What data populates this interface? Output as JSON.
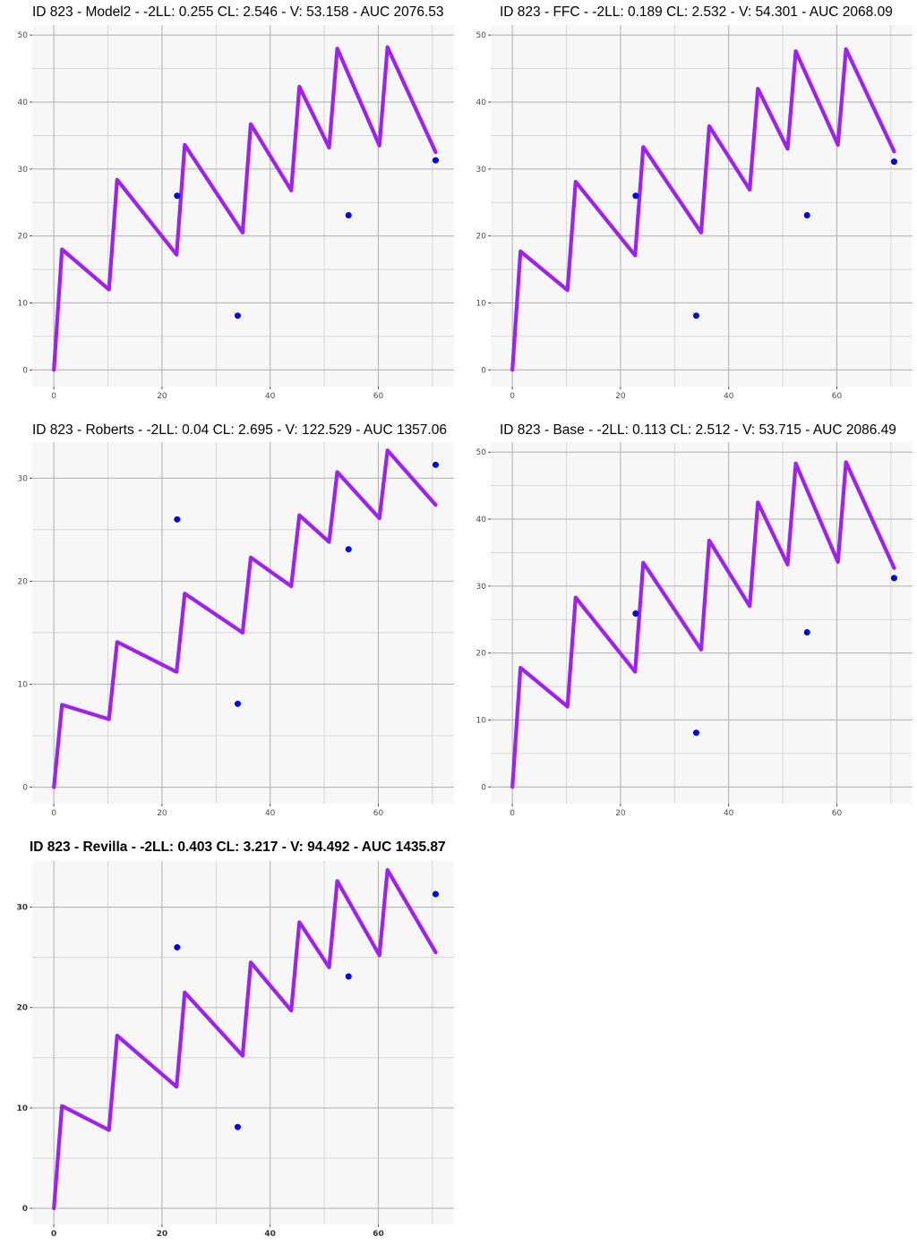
{
  "chart_data": [
    {
      "type": "line",
      "title": "ID 823 - Model2 - -2LL: 0.255 CL: 2.546 - V: 53.158 - AUC 2076.53",
      "title_bold": false,
      "xlim": [
        -4,
        74
      ],
      "ylim": [
        -2.5,
        51.5
      ],
      "x_ticks": [
        0,
        20,
        40,
        60
      ],
      "y_ticks": [
        0,
        10,
        20,
        30,
        40,
        50
      ],
      "line_color": "#a020f0",
      "point_color": "#0000ff",
      "series": [
        {
          "kind": "line",
          "x": [
            0,
            1.5,
            10.2,
            11.7,
            22.7,
            24.2,
            34.9,
            36.4,
            43.9,
            45.4,
            50.9,
            52.4,
            60.2,
            61.7,
            70.6
          ],
          "y": [
            0,
            18.0,
            12.0,
            28.4,
            17.2,
            33.6,
            20.5,
            36.7,
            26.8,
            42.3,
            33.2,
            48.0,
            33.5,
            48.2,
            32.5
          ]
        },
        {
          "kind": "points",
          "x": [
            22.8,
            34.0,
            54.5,
            70.6
          ],
          "y": [
            26.0,
            8.1,
            23.1,
            31.3
          ]
        }
      ]
    },
    {
      "type": "line",
      "title": "ID 823 - FFC - -2LL: 0.189 CL: 2.532 - V: 54.301 - AUC 2068.09",
      "title_bold": false,
      "xlim": [
        -4,
        74
      ],
      "ylim": [
        -2.5,
        51.5
      ],
      "x_ticks": [
        0,
        20,
        40,
        60
      ],
      "y_ticks": [
        0,
        10,
        20,
        30,
        40,
        50
      ],
      "line_color": "#a020f0",
      "point_color": "#0000ff",
      "series": [
        {
          "kind": "line",
          "x": [
            0,
            1.5,
            10.2,
            11.7,
            22.7,
            24.2,
            34.9,
            36.4,
            43.9,
            45.4,
            50.9,
            52.4,
            60.2,
            61.7,
            70.6
          ],
          "y": [
            0,
            17.7,
            11.9,
            28.1,
            17.1,
            33.3,
            20.5,
            36.4,
            26.9,
            42.0,
            33.0,
            47.6,
            33.6,
            47.9,
            32.6
          ]
        },
        {
          "kind": "points",
          "x": [
            22.8,
            34.0,
            54.5,
            70.6
          ],
          "y": [
            26.0,
            8.1,
            23.1,
            31.1
          ]
        }
      ]
    },
    {
      "type": "line",
      "title": "ID 823 - Roberts - -2LL: 0.04 CL: 2.695 - V: 122.529 - AUC 1357.06",
      "title_bold": false,
      "xlim": [
        -4,
        74
      ],
      "ylim": [
        -1.6,
        33.5
      ],
      "x_ticks": [
        0,
        20,
        40,
        60
      ],
      "y_ticks": [
        0,
        10,
        20,
        30
      ],
      "line_color": "#a020f0",
      "point_color": "#0000ff",
      "series": [
        {
          "kind": "line",
          "x": [
            0,
            1.5,
            10.2,
            11.7,
            22.7,
            24.2,
            34.9,
            36.4,
            43.9,
            45.4,
            50.9,
            52.4,
            60.2,
            61.7,
            70.6
          ],
          "y": [
            0,
            8.0,
            6.6,
            14.1,
            11.2,
            18.8,
            15.0,
            22.3,
            19.5,
            26.4,
            23.8,
            30.6,
            26.1,
            32.7,
            27.4
          ]
        },
        {
          "kind": "points",
          "x": [
            22.8,
            34.0,
            54.5,
            70.6
          ],
          "y": [
            26.0,
            8.1,
            23.1,
            31.3
          ]
        }
      ]
    },
    {
      "type": "line",
      "title": "ID 823 - Base - -2LL: 0.113 CL: 2.512 - V: 53.715 - AUC 2086.49",
      "title_bold": false,
      "xlim": [
        -4,
        74
      ],
      "ylim": [
        -2.5,
        51.5
      ],
      "x_ticks": [
        0,
        20,
        40,
        60
      ],
      "y_ticks": [
        0,
        10,
        20,
        30,
        40,
        50
      ],
      "line_color": "#a020f0",
      "point_color": "#0000ff",
      "series": [
        {
          "kind": "line",
          "x": [
            0,
            1.5,
            10.2,
            11.7,
            22.7,
            24.2,
            34.9,
            36.4,
            43.9,
            45.4,
            50.9,
            52.4,
            60.2,
            61.7,
            70.6
          ],
          "y": [
            0,
            17.8,
            12.0,
            28.3,
            17.2,
            33.5,
            20.5,
            36.8,
            27.0,
            42.5,
            33.2,
            48.3,
            33.6,
            48.5,
            32.7
          ]
        },
        {
          "kind": "points",
          "x": [
            22.8,
            34.0,
            54.5,
            70.6
          ],
          "y": [
            25.9,
            8.1,
            23.1,
            31.2
          ]
        }
      ]
    },
    {
      "type": "line",
      "title": "ID 823 - Revilla - -2LL: 0.403 CL: 3.217 - V: 94.492 - AUC 1435.87",
      "title_bold": true,
      "xlim": [
        -4,
        74
      ],
      "ylim": [
        -1.6,
        34.6
      ],
      "x_ticks": [
        0,
        20,
        40,
        60
      ],
      "y_ticks": [
        0,
        10,
        20,
        30
      ],
      "line_color": "#a020f0",
      "point_color": "#0000ff",
      "series": [
        {
          "kind": "line",
          "x": [
            0,
            1.5,
            10.2,
            11.7,
            22.7,
            24.2,
            34.9,
            36.4,
            43.9,
            45.4,
            50.9,
            52.4,
            60.2,
            61.7,
            70.6
          ],
          "y": [
            0,
            10.2,
            7.8,
            17.2,
            12.1,
            21.5,
            15.2,
            24.5,
            19.7,
            28.5,
            24.0,
            32.6,
            25.2,
            33.7,
            25.5
          ]
        },
        {
          "kind": "points",
          "x": [
            22.8,
            34.0,
            54.5,
            70.6
          ],
          "y": [
            26.0,
            8.1,
            23.1,
            31.3
          ]
        }
      ]
    }
  ]
}
